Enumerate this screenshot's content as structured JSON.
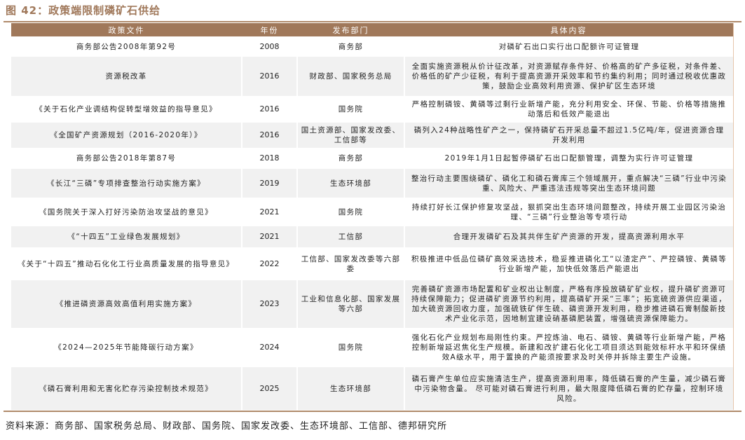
{
  "title": "图 42：政策端限制磷矿石供给",
  "headers": [
    "政策文件",
    "年份",
    "发布部门",
    "具体内容"
  ],
  "rows": [
    {
      "doc": "商务部公告2008年第92号",
      "year": "2008",
      "dept": "商务部",
      "content": "对磷矿石出口实行出口配额许可证管理"
    },
    {
      "doc": "资源税改革",
      "year": "2016",
      "dept": "财政部、国家税务总局",
      "content": "全面实施资源税从价计征改革，对资源赋存条件好、价格高的矿产多征税，对条件差、价格低的矿产少征税，有利于提高资源开采效率和节约集约利用；同时通过税收优惠政策，鼓励企业高效利用资源、保护矿区生态环境"
    },
    {
      "doc": "《关于石化产业调结构促转型增效益的指导意见》",
      "year": "2016",
      "dept": "国务院",
      "content": "严格控制磷铵、黄磷等过剩行业新增产能，充分利用安全、环保、节能、价格等措施推动落后和低效产能退出"
    },
    {
      "doc": "《全国矿产资源规划（2016-2020年）》",
      "year": "2016",
      "dept": "国土资源部、国家发改委、工信部等",
      "content": "磷列入24种战略性矿产之一，保持磷矿石开采总量不超过1.5亿吨/年，促进资源合理开发利用"
    },
    {
      "doc": "商务部公告2018年第87号",
      "year": "2018",
      "dept": "商务部",
      "content": "2019年1月1日起暂停磷矿石出口配额管理，调整为实行许可证管理"
    },
    {
      "doc": "《长江“三磷”专项排查整治行动实施方案》",
      "year": "2019",
      "dept": "生态环境部",
      "content": "整治行动主要围绕磷矿、磷化工和磷石膏库三个领域展开，重点解决“三磷”行业中污染重、风险大、严重违法违规等突出生态环境问题"
    },
    {
      "doc": "《国务院关于深入打好污染防治攻坚战的意见》",
      "year": "2021",
      "dept": "国务院",
      "content": "持续打好长江保护修复攻坚战，狠抓突出生态环境问题整改，持续开展工业园区污染治理、“三磷”行业整治等专项行动"
    },
    {
      "doc": "《“十四五”工业绿色发展规划》",
      "year": "2021",
      "dept": "工信部",
      "content": "合理开发磷矿石及其共伴生矿产资源的开发，提高资源利用水平"
    },
    {
      "doc": "《关于“十四五”推动石化化工行业高质量发展的指导意见》",
      "year": "2022",
      "dept": "工信部、国家发改委等六部委",
      "content": "积极推进中低品位磷矿高效采选技术，稳妥推进磷化工“以渣定产”、严控磷铵、黄磷等行业新增产能，加快低效落后产能退出"
    },
    {
      "doc": "《推进磷资源高效高值利用实施方案》",
      "year": "2023",
      "dept": "工业和信息化部、国家发展等六部",
      "content": "完善磷矿资源市场配置和矿业权出让制度，严格有序投放磷矿矿业权，提升磷矿资源可持续保障能力；促进磷矿资源节约利用，提高磷矿开采“三率”；拓宽硫资源供应渠道，加大硫资源回收力度，加强硫铁矿伴生硫、磷资源开发利用，稳步推进磷石膏制酸新技术产业化示范，因地制宜建设硝基磷肥装置，增强硫资源保障能力。"
    },
    {
      "doc": "《2024—2025年节能降碳行动方案》",
      "year": "2024",
      "dept": "国务院",
      "content": "强化石化产业规划布局刚性约束。严控炼油、电石、磷铵、黄磷等行业新增产能，严格控制新增延迟焦化生产规模。新建和改扩建石化化工项目须达到能效标杆水平和环保绩效A级水平，用于置换的产能须按要求及时关停并拆除主要生产设施。"
    },
    {
      "doc": "《磷石膏利用和无害化贮存污染控制技术规范》",
      "year": "2025",
      "dept": "生态环境部",
      "content": "磷石膏产生单位应实施清洁生产，提高资源利用率，降低磷石膏的产生量，减少磷石膏中污染物含量。 尽可能对磷石膏进行利用，最大限度降低磷石膏的贮存量，控制环境风险。"
    }
  ],
  "source": "资料来源：商务部、国家税务总局、财政部、国务院、国家发改委、生态环境部、工信部、德邦研究所",
  "colors": {
    "header_bg": "#a0785a",
    "alt_row": "#f1f1f1"
  }
}
